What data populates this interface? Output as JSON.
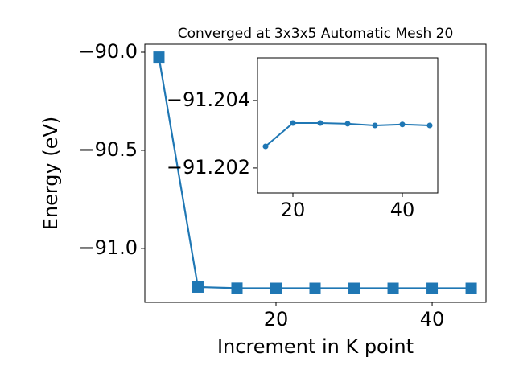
{
  "chart_data": [
    {
      "type": "line",
      "title": "Converged at 3x3x5 Automatic Mesh 20",
      "xlabel": "Increment in K point",
      "ylabel": "Energy (eV)",
      "x": [
        5,
        10,
        15,
        20,
        25,
        30,
        35,
        40,
        45
      ],
      "series": [
        {
          "color": "#1f77b4",
          "marker": "square",
          "values": [
            -90.025,
            -91.197,
            -91.2026,
            -91.2033,
            -91.2033,
            -91.2033,
            -91.2033,
            -91.2033,
            -91.2033
          ]
        }
      ],
      "xlim": [
        3.2,
        46.9
      ],
      "xticks": [
        20,
        40
      ],
      "ylim": [
        -91.275,
        -89.959
      ],
      "yticks": [
        {
          "value": -90.0,
          "label": "−90.0"
        },
        {
          "value": -90.5,
          "label": "−90.5"
        },
        {
          "value": -91.0,
          "label": "−91.0"
        }
      ]
    },
    {
      "type": "line",
      "x": [
        15,
        20,
        25,
        30,
        35,
        40,
        45
      ],
      "series": [
        {
          "color": "#1f77b4",
          "marker": "circle",
          "values": [
            -91.20264,
            -91.20333,
            -91.20333,
            -91.20331,
            -91.20326,
            -91.20329,
            -91.20326
          ]
        }
      ],
      "xlim": [
        13.53,
        46.47
      ],
      "xticks": [
        20,
        40
      ],
      "ylim": [
        -91.20126,
        -91.20526
      ],
      "yticks": [
        {
          "value": -91.204,
          "label": "−91.204"
        },
        {
          "value": -91.202,
          "label": "−91.202"
        }
      ]
    }
  ]
}
